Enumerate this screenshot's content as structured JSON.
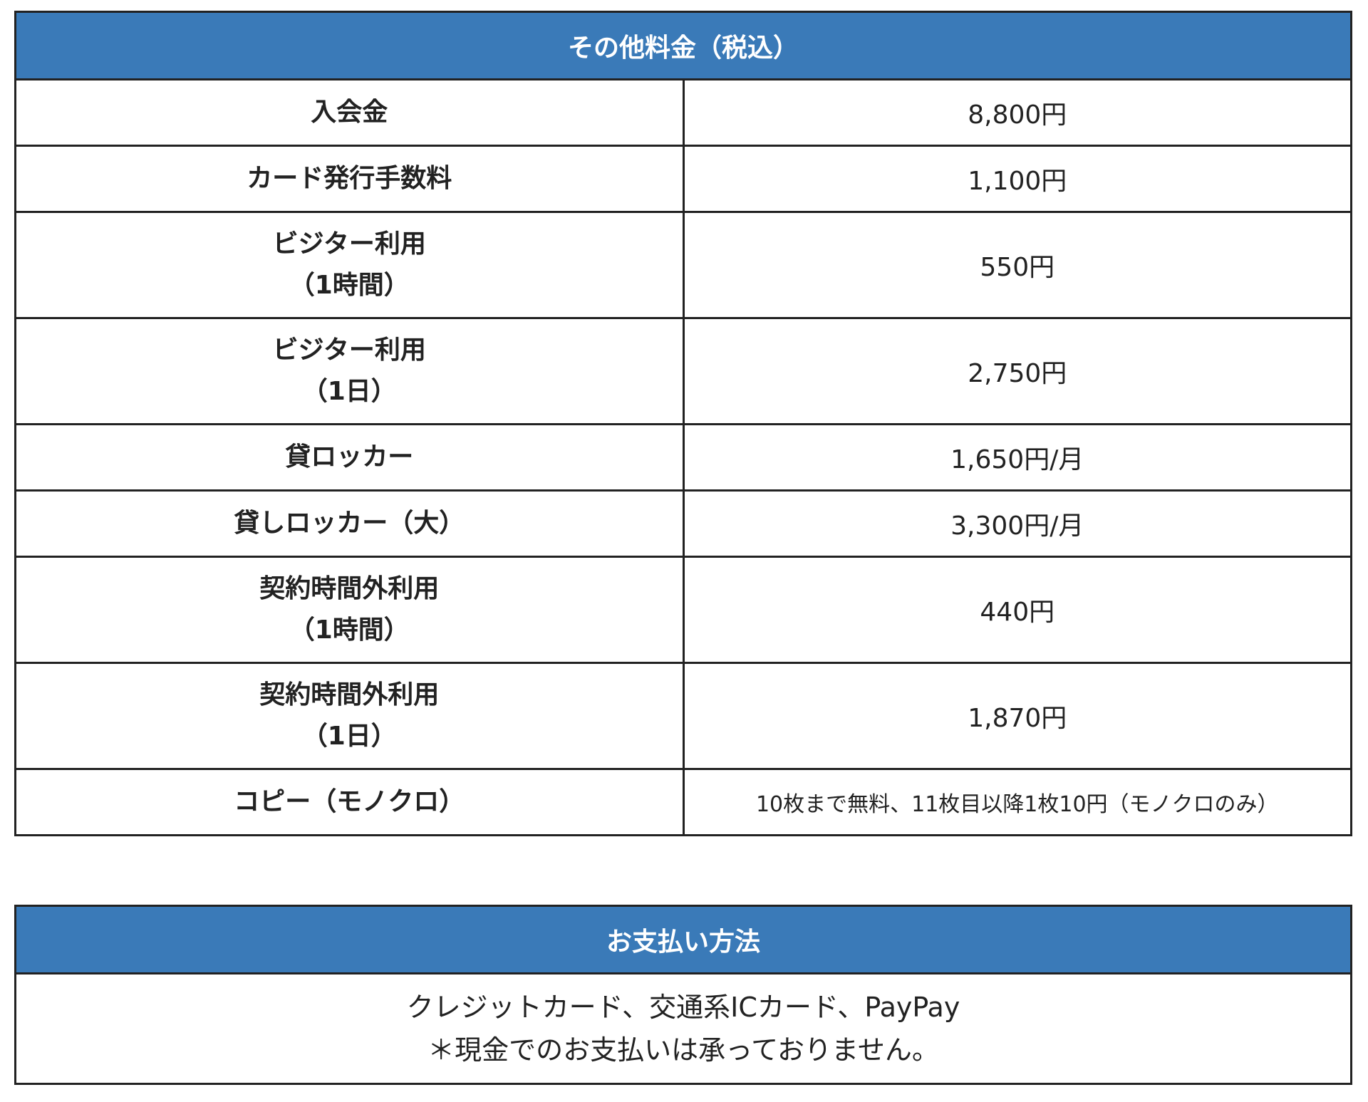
{
  "fees": {
    "title": "その他料金（税込）",
    "rows": [
      {
        "item": [
          "入会金"
        ],
        "price": "8,800円"
      },
      {
        "item": [
          "カード発行手数料"
        ],
        "price": "1,100円"
      },
      {
        "item": [
          "ビジター利用",
          "（1時間）"
        ],
        "price": "550円"
      },
      {
        "item": [
          "ビジター利用",
          "（1日）"
        ],
        "price": "2,750円"
      },
      {
        "item": [
          "貸ロッカー"
        ],
        "price": "1,650円/月"
      },
      {
        "item": [
          "貸しロッカー（大）"
        ],
        "price": "3,300円/月"
      },
      {
        "item": [
          "契約時間外利用",
          "（1時間）"
        ],
        "price": "440円"
      },
      {
        "item": [
          "契約時間外利用",
          "（1日）"
        ],
        "price": "1,870円"
      },
      {
        "item": [
          "コピー（モノクロ）"
        ],
        "price": "10枚まで無料、11枚目以降1枚10円（モノクロのみ）"
      }
    ]
  },
  "payment": {
    "title": "お支払い方法",
    "lines": [
      "クレジットカード、交通系ICカード、PayPay",
      "＊現金でのお支払いは承っておりません。"
    ]
  }
}
